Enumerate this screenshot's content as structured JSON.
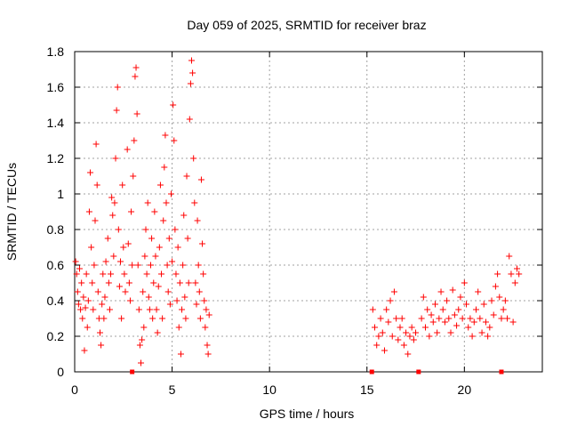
{
  "chart_data": {
    "type": "scatter",
    "title": "Day 059 of 2025, SRMTID for receiver braz",
    "xlabel": "GPS time / hours",
    "ylabel": "SRMTID / TECUs",
    "xlim": [
      0,
      24
    ],
    "ylim": [
      0,
      1.8
    ],
    "xticks": [
      0,
      5,
      10,
      15,
      20
    ],
    "xtick_labels": [
      "0",
      "5",
      "10",
      "15",
      "20"
    ],
    "yticks": [
      0,
      0.2,
      0.4,
      0.6,
      0.8,
      1.0,
      1.2,
      1.4,
      1.6,
      1.8
    ],
    "ytick_labels": [
      "0",
      "0.2",
      "0.4",
      "0.6",
      "0.8",
      "1",
      "1.2",
      "1.4",
      "1.6",
      "1.8"
    ],
    "grid": true,
    "marker": "plus",
    "color": "#ff0000",
    "series": [
      {
        "name": "SRMTID",
        "points": [
          [
            0.05,
            0.62
          ],
          [
            0.1,
            0.55
          ],
          [
            0.15,
            0.45
          ],
          [
            0.2,
            0.38
          ],
          [
            0.25,
            0.58
          ],
          [
            0.3,
            0.35
          ],
          [
            0.35,
            0.5
          ],
          [
            0.4,
            0.3
          ],
          [
            0.45,
            0.42
          ],
          [
            0.5,
            0.12
          ],
          [
            0.55,
            0.36
          ],
          [
            0.6,
            0.55
          ],
          [
            0.65,
            0.25
          ],
          [
            0.7,
            0.4
          ],
          [
            0.75,
            0.9
          ],
          [
            0.8,
            1.12
          ],
          [
            0.85,
            0.7
          ],
          [
            0.9,
            0.5
          ],
          [
            0.95,
            0.35
          ],
          [
            1.0,
            0.6
          ],
          [
            1.05,
            0.85
          ],
          [
            1.1,
            1.28
          ],
          [
            1.15,
            1.05
          ],
          [
            1.2,
            0.45
          ],
          [
            1.25,
            0.3
          ],
          [
            1.3,
            0.22
          ],
          [
            1.35,
            0.15
          ],
          [
            1.4,
            0.38
          ],
          [
            1.45,
            0.55
          ],
          [
            1.5,
            0.3
          ],
          [
            1.55,
            0.42
          ],
          [
            1.6,
            0.62
          ],
          [
            1.7,
            0.75
          ],
          [
            1.75,
            0.5
          ],
          [
            1.8,
            0.35
          ],
          [
            1.85,
            0.55
          ],
          [
            1.9,
            0.98
          ],
          [
            1.95,
            0.88
          ],
          [
            2.0,
            0.65
          ],
          [
            2.05,
            0.95
          ],
          [
            2.1,
            1.2
          ],
          [
            2.15,
            1.47
          ],
          [
            2.2,
            1.6
          ],
          [
            2.25,
            0.8
          ],
          [
            2.3,
            0.48
          ],
          [
            2.35,
            0.62
          ],
          [
            2.4,
            0.3
          ],
          [
            2.45,
            1.05
          ],
          [
            2.5,
            0.7
          ],
          [
            2.55,
            0.55
          ],
          [
            2.6,
            0.45
          ],
          [
            2.7,
            1.25
          ],
          [
            2.75,
            0.72
          ],
          [
            2.8,
            0.5
          ],
          [
            2.85,
            0.4
          ],
          [
            2.9,
            0.9
          ],
          [
            2.95,
            0.6
          ],
          [
            3.0,
            1.1
          ],
          [
            3.05,
            1.3
          ],
          [
            3.1,
            1.66
          ],
          [
            3.15,
            1.71
          ],
          [
            3.2,
            1.45
          ],
          [
            3.25,
            0.6
          ],
          [
            3.3,
            0.35
          ],
          [
            3.35,
            0.15
          ],
          [
            3.4,
            0.05
          ],
          [
            3.45,
            0.18
          ],
          [
            3.5,
            0.45
          ],
          [
            3.55,
            0.25
          ],
          [
            3.6,
            0.65
          ],
          [
            3.65,
            0.8
          ],
          [
            3.7,
            0.55
          ],
          [
            3.75,
            0.95
          ],
          [
            3.8,
            0.42
          ],
          [
            3.85,
            0.35
          ],
          [
            3.9,
            0.6
          ],
          [
            3.95,
            0.75
          ],
          [
            4.0,
            0.3
          ],
          [
            4.05,
            0.5
          ],
          [
            4.1,
            0.9
          ],
          [
            4.15,
            0.65
          ],
          [
            4.2,
            0.35
          ],
          [
            4.25,
            0.22
          ],
          [
            4.3,
            0.48
          ],
          [
            4.35,
            0.7
          ],
          [
            4.4,
            1.05
          ],
          [
            4.45,
            0.55
          ],
          [
            4.5,
            0.3
          ],
          [
            4.55,
            0.85
          ],
          [
            4.6,
            1.15
          ],
          [
            4.65,
            1.33
          ],
          [
            4.7,
            0.95
          ],
          [
            4.75,
            0.6
          ],
          [
            4.8,
            0.45
          ],
          [
            4.85,
            0.75
          ],
          [
            4.9,
            0.38
          ],
          [
            4.95,
            1.0
          ],
          [
            5.0,
            0.62
          ],
          [
            5.05,
            1.5
          ],
          [
            5.1,
            1.3
          ],
          [
            5.15,
            0.8
          ],
          [
            5.2,
            0.55
          ],
          [
            5.25,
            0.4
          ],
          [
            5.3,
            0.7
          ],
          [
            5.35,
            0.25
          ],
          [
            5.4,
            0.5
          ],
          [
            5.45,
            0.1
          ],
          [
            5.5,
            0.35
          ],
          [
            5.55,
            0.6
          ],
          [
            5.6,
            0.88
          ],
          [
            5.65,
            0.42
          ],
          [
            5.7,
            0.3
          ],
          [
            5.75,
            1.1
          ],
          [
            5.8,
            0.75
          ],
          [
            5.85,
            0.5
          ],
          [
            5.9,
            1.42
          ],
          [
            5.95,
            1.62
          ],
          [
            6.0,
            1.75
          ],
          [
            6.05,
            1.68
          ],
          [
            6.1,
            1.2
          ],
          [
            6.15,
            0.95
          ],
          [
            6.2,
            0.5
          ],
          [
            6.25,
            0.38
          ],
          [
            6.3,
            0.85
          ],
          [
            6.35,
            0.6
          ],
          [
            6.4,
            0.45
          ],
          [
            6.45,
            0.3
          ],
          [
            6.5,
            1.08
          ],
          [
            6.55,
            0.72
          ],
          [
            6.6,
            0.55
          ],
          [
            6.65,
            0.4
          ],
          [
            6.7,
            0.25
          ],
          [
            6.75,
            0.35
          ],
          [
            6.8,
            0.15
          ],
          [
            6.85,
            0.1
          ],
          [
            6.9,
            0.32
          ],
          [
            15.3,
            0.35
          ],
          [
            15.4,
            0.25
          ],
          [
            15.5,
            0.15
          ],
          [
            15.6,
            0.2
          ],
          [
            15.7,
            0.3
          ],
          [
            15.8,
            0.22
          ],
          [
            15.9,
            0.12
          ],
          [
            16.0,
            0.35
          ],
          [
            16.1,
            0.28
          ],
          [
            16.2,
            0.4
          ],
          [
            16.3,
            0.2
          ],
          [
            16.4,
            0.45
          ],
          [
            16.5,
            0.3
          ],
          [
            16.6,
            0.18
          ],
          [
            16.7,
            0.25
          ],
          [
            16.8,
            0.3
          ],
          [
            16.9,
            0.15
          ],
          [
            17.0,
            0.22
          ],
          [
            17.1,
            0.1
          ],
          [
            17.2,
            0.2
          ],
          [
            17.3,
            0.25
          ],
          [
            17.4,
            0.18
          ],
          [
            17.5,
            0.22
          ],
          [
            17.8,
            0.3
          ],
          [
            17.9,
            0.42
          ],
          [
            18.0,
            0.25
          ],
          [
            18.1,
            0.35
          ],
          [
            18.2,
            0.2
          ],
          [
            18.3,
            0.32
          ],
          [
            18.4,
            0.28
          ],
          [
            18.5,
            0.38
          ],
          [
            18.6,
            0.22
          ],
          [
            18.7,
            0.3
          ],
          [
            18.8,
            0.45
          ],
          [
            18.9,
            0.35
          ],
          [
            19.0,
            0.28
          ],
          [
            19.1,
            0.4
          ],
          [
            19.2,
            0.3
          ],
          [
            19.3,
            0.22
          ],
          [
            19.4,
            0.46
          ],
          [
            19.5,
            0.32
          ],
          [
            19.6,
            0.26
          ],
          [
            19.7,
            0.35
          ],
          [
            19.8,
            0.42
          ],
          [
            19.9,
            0.3
          ],
          [
            20.0,
            0.5
          ],
          [
            20.1,
            0.38
          ],
          [
            20.2,
            0.25
          ],
          [
            20.3,
            0.3
          ],
          [
            20.4,
            0.2
          ],
          [
            20.5,
            0.28
          ],
          [
            20.6,
            0.35
          ],
          [
            20.7,
            0.45
          ],
          [
            20.8,
            0.3
          ],
          [
            20.9,
            0.22
          ],
          [
            21.0,
            0.38
          ],
          [
            21.1,
            0.28
          ],
          [
            21.2,
            0.2
          ],
          [
            21.3,
            0.25
          ],
          [
            21.4,
            0.4
          ],
          [
            21.5,
            0.32
          ],
          [
            21.6,
            0.48
          ],
          [
            21.7,
            0.55
          ],
          [
            21.8,
            0.42
          ],
          [
            21.9,
            0.3
          ],
          [
            22.0,
            0.35
          ],
          [
            22.1,
            0.4
          ],
          [
            22.2,
            0.3
          ],
          [
            22.3,
            0.65
          ],
          [
            22.4,
            0.55
          ],
          [
            22.5,
            0.28
          ],
          [
            22.6,
            0.5
          ],
          [
            22.7,
            0.58
          ],
          [
            22.8,
            0.55
          ]
        ]
      }
    ],
    "gap_markers_x": [
      2.95,
      15.25,
      17.65,
      21.9
    ]
  }
}
